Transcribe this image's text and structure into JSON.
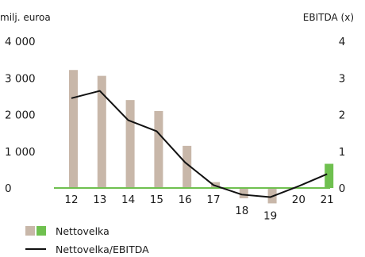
{
  "chart_data": {
    "type": "bar",
    "left_unit": "milj. euroa",
    "right_unit": "EBITDA (x)",
    "categories": [
      "12",
      "13",
      "14",
      "15",
      "16",
      "17",
      "18",
      "19",
      "20",
      "21"
    ],
    "y_left_ticks": [
      "0",
      "1 000",
      "2 000",
      "3 000",
      "4 000"
    ],
    "y_right_ticks": [
      "0",
      "1",
      "2",
      "3",
      "4"
    ],
    "ylim_left": [
      0,
      4000
    ],
    "ylim_right": [
      0,
      4
    ],
    "grid": false,
    "legend_position": "bottom-left",
    "series": [
      {
        "name": "Nettovelka",
        "kind": "bar",
        "axis": "left",
        "values": [
          3220,
          3060,
          2400,
          2100,
          1150,
          160,
          -280,
          -420,
          0,
          660
        ],
        "color_past": "#c8b7a9",
        "color_current": "#6fc04f"
      },
      {
        "name": "Nettovelka/EBITDA",
        "kind": "line",
        "axis": "right",
        "values": [
          2.45,
          2.65,
          1.85,
          1.55,
          0.7,
          0.08,
          -0.18,
          -0.25,
          0.05,
          0.38
        ],
        "color": "#111111"
      }
    ],
    "zero_line_color": "#6fc04f"
  }
}
